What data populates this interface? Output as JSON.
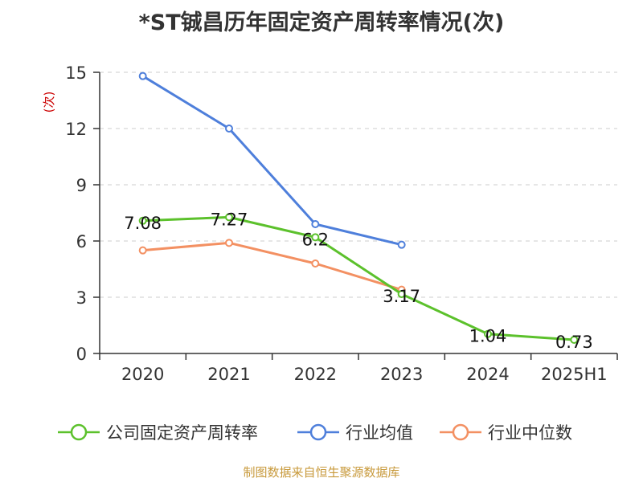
{
  "title": "*ST铖昌历年固定资产周转率情况(次)",
  "source": "制图数据来自恒生聚源数据库",
  "colors": {
    "turnover": "#5cc12c",
    "industry_avg": "#4e7fdb",
    "industry_median": "#f39062",
    "axis": "#333333",
    "grid": "#cccccc",
    "unit": "#cc0000",
    "source": "#c89a3c"
  },
  "chart_data": {
    "type": "line",
    "title": "*ST铖昌历年固定资产周转率情况(次)",
    "ylabel": "(次)",
    "xlabel": "",
    "categories": [
      "2020",
      "2021",
      "2022",
      "2023",
      "2024",
      "2025H1"
    ],
    "y_ticks": [
      "0",
      "3",
      "6",
      "9",
      "12",
      "15"
    ],
    "ylim": [
      0,
      15
    ],
    "grid": true,
    "legend_position": "bottom",
    "series": [
      {
        "name": "公司固定资产周转率",
        "key": "turnover",
        "values": [
          7.08,
          7.27,
          6.2,
          3.17,
          1.04,
          0.73
        ],
        "labels": [
          "7.08",
          "7.27",
          "6.2",
          "3.17",
          "1.04",
          "0.73"
        ]
      },
      {
        "name": "行业均值",
        "key": "industry_avg",
        "values": [
          14.8,
          12.0,
          6.9,
          5.8,
          null,
          null
        ]
      },
      {
        "name": "行业中位数",
        "key": "industry_median",
        "values": [
          5.5,
          5.9,
          4.8,
          3.4,
          null,
          null
        ]
      }
    ]
  }
}
